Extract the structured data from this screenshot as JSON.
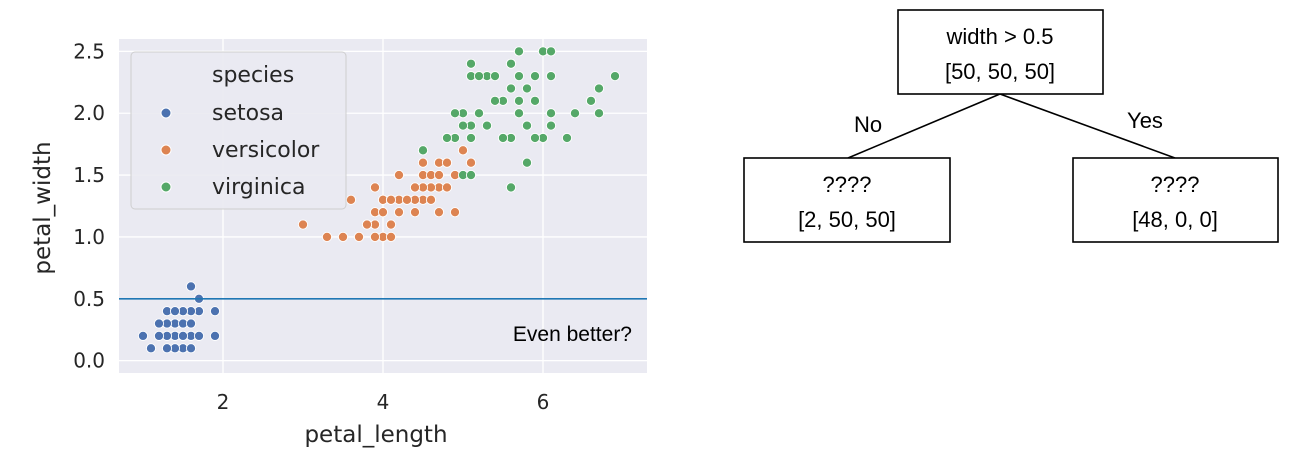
{
  "chart_data": {
    "type": "scatter",
    "xlabel": "petal_length",
    "ylabel": "petal_width",
    "xlim": [
      0.7,
      7.3
    ],
    "ylim": [
      -0.1,
      2.6
    ],
    "xticks": [
      2,
      4,
      6
    ],
    "yticks": [
      0.0,
      0.5,
      1.0,
      1.5,
      2.0,
      2.5
    ],
    "grid": true,
    "background": "#eaeaf2",
    "legend": {
      "title": "species",
      "placement": "top-left"
    },
    "hline": {
      "y": 0.5,
      "color": "#1f77b4",
      "label": "Even better?"
    },
    "series": [
      {
        "name": "setosa",
        "color": "#4c72b0",
        "points": [
          [
            1.4,
            0.2
          ],
          [
            1.3,
            0.2
          ],
          [
            1.5,
            0.2
          ],
          [
            1.7,
            0.4
          ],
          [
            1.4,
            0.3
          ],
          [
            1.5,
            0.1
          ],
          [
            1.6,
            0.2
          ],
          [
            1.1,
            0.1
          ],
          [
            1.2,
            0.2
          ],
          [
            1.0,
            0.2
          ],
          [
            1.7,
            0.5
          ],
          [
            1.9,
            0.2
          ],
          [
            1.6,
            0.4
          ],
          [
            1.5,
            0.4
          ],
          [
            1.4,
            0.1
          ],
          [
            1.6,
            0.6
          ],
          [
            1.9,
            0.4
          ],
          [
            1.3,
            0.3
          ],
          [
            1.3,
            0.4
          ],
          [
            1.2,
            0.3
          ],
          [
            1.5,
            0.3
          ],
          [
            1.6,
            0.3
          ],
          [
            1.7,
            0.2
          ],
          [
            1.4,
            0.4
          ],
          [
            1.6,
            0.1
          ],
          [
            1.5,
            0.2
          ],
          [
            1.3,
            0.1
          ]
        ]
      },
      {
        "name": "versicolor",
        "color": "#dd8452",
        "points": [
          [
            4.7,
            1.4
          ],
          [
            4.5,
            1.5
          ],
          [
            4.9,
            1.5
          ],
          [
            4.0,
            1.3
          ],
          [
            4.6,
            1.5
          ],
          [
            3.3,
            1.0
          ],
          [
            3.9,
            1.4
          ],
          [
            3.5,
            1.0
          ],
          [
            4.2,
            1.5
          ],
          [
            4.0,
            1.0
          ],
          [
            4.7,
            1.6
          ],
          [
            3.6,
            1.3
          ],
          [
            4.4,
            1.4
          ],
          [
            4.1,
            1.0
          ],
          [
            4.5,
            1.3
          ],
          [
            3.9,
            1.1
          ],
          [
            4.8,
            1.8
          ],
          [
            4.9,
            1.5
          ],
          [
            4.7,
            1.2
          ],
          [
            4.3,
            1.3
          ],
          [
            4.4,
            1.3
          ],
          [
            5.0,
            1.7
          ],
          [
            3.8,
            1.1
          ],
          [
            3.7,
            1.0
          ],
          [
            3.9,
            1.2
          ],
          [
            5.1,
            1.6
          ],
          [
            4.5,
            1.6
          ],
          [
            4.0,
            1.2
          ],
          [
            4.4,
            1.2
          ],
          [
            4.6,
            1.4
          ],
          [
            4.0,
            1.3
          ],
          [
            3.0,
            1.1
          ],
          [
            4.1,
            1.3
          ],
          [
            4.2,
            1.3
          ],
          [
            4.3,
            1.3
          ],
          [
            4.6,
            1.3
          ],
          [
            4.5,
            1.4
          ],
          [
            4.2,
            1.2
          ],
          [
            4.8,
            1.4
          ],
          [
            4.4,
            1.4
          ],
          [
            4.7,
            1.5
          ],
          [
            4.1,
            1.3
          ],
          [
            3.8,
            1.1
          ],
          [
            5.1,
            1.5
          ],
          [
            4.5,
            1.7
          ],
          [
            4.9,
            1.2
          ],
          [
            4.8,
            1.6
          ],
          [
            4.1,
            1.1
          ],
          [
            3.9,
            1.0
          ]
        ]
      },
      {
        "name": "virginica",
        "color": "#55a868",
        "points": [
          [
            6.0,
            2.5
          ],
          [
            5.1,
            1.9
          ],
          [
            5.9,
            2.1
          ],
          [
            5.6,
            1.8
          ],
          [
            5.8,
            2.2
          ],
          [
            6.6,
            2.1
          ],
          [
            4.5,
            1.7
          ],
          [
            6.3,
            1.8
          ],
          [
            6.1,
            2.5
          ],
          [
            5.3,
            1.9
          ],
          [
            5.5,
            2.1
          ],
          [
            5.0,
            2.0
          ],
          [
            5.1,
            2.4
          ],
          [
            5.3,
            2.3
          ],
          [
            5.5,
            1.8
          ],
          [
            6.7,
            2.2
          ],
          [
            6.9,
            2.3
          ],
          [
            5.0,
            1.5
          ],
          [
            5.7,
            2.3
          ],
          [
            4.9,
            2.0
          ],
          [
            6.7,
            2.0
          ],
          [
            4.9,
            1.8
          ],
          [
            5.7,
            2.1
          ],
          [
            6.0,
            1.8
          ],
          [
            4.8,
            1.8
          ],
          [
            5.8,
            1.6
          ],
          [
            6.1,
            1.9
          ],
          [
            6.4,
            2.0
          ],
          [
            5.6,
            2.2
          ],
          [
            5.1,
            1.5
          ],
          [
            5.6,
            1.4
          ],
          [
            6.1,
            2.3
          ],
          [
            5.6,
            2.4
          ],
          [
            5.5,
            1.8
          ],
          [
            5.4,
            2.1
          ],
          [
            5.6,
            2.4
          ],
          [
            5.1,
            2.3
          ],
          [
            5.9,
            2.3
          ],
          [
            5.7,
            2.5
          ],
          [
            5.2,
            2.3
          ],
          [
            5.2,
            2.0
          ],
          [
            5.4,
            2.3
          ],
          [
            5.1,
            1.8
          ],
          [
            5.9,
            1.8
          ],
          [
            6.6,
            2.1
          ],
          [
            6.1,
            2.0
          ],
          [
            5.8,
            1.9
          ],
          [
            5.0,
            1.9
          ],
          [
            5.7,
            2.0
          ]
        ]
      }
    ]
  },
  "tree": {
    "root": {
      "line1": "width > 0.5",
      "line2": "[50, 50, 50]"
    },
    "left": {
      "edge_label": "No",
      "line1": "????",
      "line2": "[2, 50, 50]"
    },
    "right": {
      "edge_label": "Yes",
      "line1": "????",
      "line2": "[48, 0, 0]"
    }
  }
}
